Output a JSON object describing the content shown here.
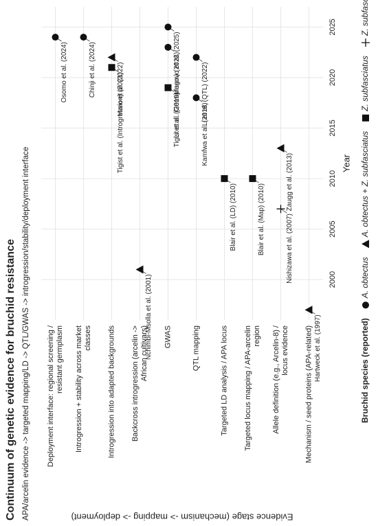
{
  "chart_data": {
    "type": "scatter",
    "title": "Continuum of genetic evidence for bruchid resistance",
    "subtitle": "APA/arcelin evidence -> targeted mapping/LD -> QTL/GWAS -> introgression/stability/deployment interface",
    "x_label": "Year",
    "y_label": "Evidence stage (mechanism -> mapping -> deployment)",
    "legend_title": "Bruchid species (reported)",
    "categories": [
      "Deployment interface: regional screening /\nresistant germplasm",
      "Introgression + stability across market\nclasses",
      "Introgression into adapted backgrounds",
      "Backcross introgression (arcelin ->\nAfrican cultivars)",
      "GWAS",
      "QTL mapping",
      "Targeted LD analysis / APA locus",
      "Targeted locus mapping / APA-arcelin\nregion",
      "Allele definition (e.g., Arcelin-8) /\nlocus evidence",
      "Mechanism / seed proteins (APA-related)"
    ],
    "xlim": [
      1996,
      2027
    ],
    "xticks": [
      2000,
      2005,
      2010,
      2015,
      2020,
      2025
    ],
    "grid": true,
    "series": [
      {
        "name": "A. obtectus",
        "marker": "circle",
        "color": "#111111",
        "points": [
          {
            "x": 2018,
            "y": 5,
            "label": "Kamfwa et al. (2018)"
          },
          {
            "x": 2022,
            "y": 5,
            "label": "Li et al. (QTL) (2022)"
          },
          {
            "x": 2023,
            "y": 4,
            "label": "Li et al. (Germplasm) (2023)"
          },
          {
            "x": 2025,
            "y": 4,
            "label": "Mugovo et al. (2025)"
          },
          {
            "x": 2024,
            "y": 1,
            "label": "Chinji et al. (2024)"
          },
          {
            "x": 2024,
            "y": 0,
            "label": "Osomo et al. (2024)"
          }
        ]
      },
      {
        "name": "A. obtectus + Z. subfasciatus",
        "marker": "triangle",
        "color": "#111111",
        "points": [
          {
            "x": 1997,
            "y": 9,
            "label": "Hartweck et al. (1997)"
          },
          {
            "x": 2001,
            "y": 3,
            "label": "Nchimbi-Msolla et al. (2001)"
          },
          {
            "x": 2013,
            "y": 8,
            "label": "Zaugg et al. (2013)"
          },
          {
            "x": 2022,
            "y": 2,
            "label": "Maro et al. (2022)"
          }
        ]
      },
      {
        "name": "Z. subfasciatus",
        "marker": "square",
        "color": "#111111",
        "points": [
          {
            "x": 2010,
            "y": 6,
            "label": "Blair et al. (LD) (2010)"
          },
          {
            "x": 2010,
            "y": 7,
            "label": "Blair et al. (Map) (2010)"
          },
          {
            "x": 2019,
            "y": 4,
            "label": "Tigist et al. (2019)"
          },
          {
            "x": 2021,
            "y": 2,
            "label": "Tigist et al. (Introgression) (2021)"
          }
        ]
      },
      {
        "name": "Z. subfasciatus + C. chinensis",
        "marker": "plus",
        "color": "#111111",
        "points": [
          {
            "x": 2007,
            "y": 8,
            "label": "Nishizawa et al. (2007)"
          }
        ]
      }
    ]
  }
}
